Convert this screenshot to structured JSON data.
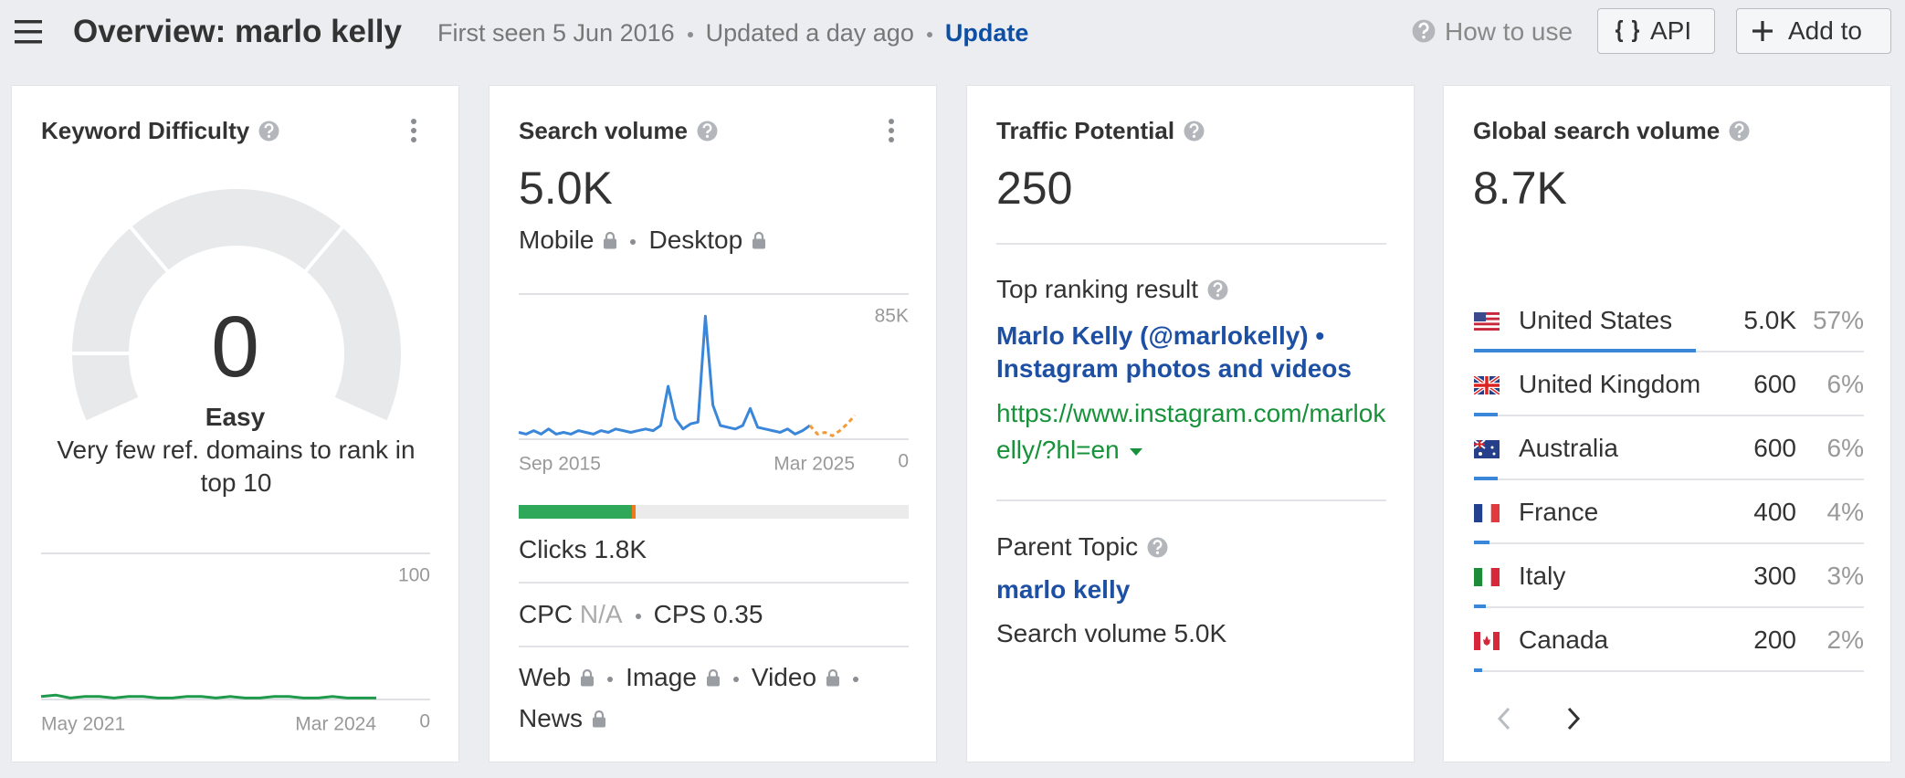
{
  "header": {
    "title": "Overview: marlo kelly",
    "first_seen": "First seen 5 Jun 2016",
    "updated": "Updated a day ago",
    "update_link": "Update",
    "how_to_use": "How to use",
    "api_button": "API",
    "add_button": "Add to"
  },
  "keyword_difficulty": {
    "title": "Keyword Difficulty",
    "value": 0,
    "rating": "Easy",
    "description": "Very few ref. domains to rank in top 10",
    "chart": {
      "type": "line",
      "color": "#1f9a4c",
      "ylim": [
        0,
        100
      ],
      "yticks": [
        0,
        100
      ],
      "x": [
        "May 2021",
        null,
        null,
        null,
        null,
        null,
        null,
        null,
        null,
        null,
        null,
        null,
        null,
        null,
        null,
        null,
        null,
        null,
        null,
        null,
        null,
        null,
        null,
        "Mar 2024"
      ],
      "values": [
        2,
        3,
        1,
        2,
        2,
        1,
        2,
        2,
        1,
        1,
        2,
        2,
        1,
        2,
        1,
        1,
        2,
        2,
        1,
        1,
        2,
        1,
        1,
        1
      ]
    }
  },
  "search_volume": {
    "title": "Search volume",
    "value": "5.0K",
    "mobile": "Mobile",
    "desktop": "Desktop",
    "chart": {
      "type": "line",
      "ylim": [
        0,
        85000
      ],
      "yticks": [
        0,
        {
          "value": 85000,
          "label": "85K"
        }
      ],
      "x": [
        "Sep 2015",
        null,
        null,
        null,
        null,
        null,
        null,
        null,
        null,
        null,
        null,
        null,
        null,
        null,
        null,
        null,
        null,
        null,
        null,
        null,
        null,
        null,
        null,
        null,
        null,
        null,
        null,
        null,
        null,
        null,
        null,
        null,
        null,
        null,
        null,
        null,
        null,
        null,
        null,
        null,
        null,
        null,
        null,
        null,
        null,
        "Mar 2025"
      ],
      "series": [
        {
          "color": "#3a86d8",
          "dash": false,
          "values": [
            4000,
            3000,
            5000,
            3000,
            6000,
            3000,
            4000,
            3000,
            5000,
            4000,
            3000,
            5000,
            4000,
            6000,
            5000,
            4000,
            5000,
            6000,
            5000,
            8000,
            31000,
            12000,
            6000,
            9000,
            10000,
            72000,
            20000,
            8000,
            7000,
            6000,
            8000,
            18000,
            7000,
            6000,
            5000,
            4000,
            6000,
            3000,
            5000,
            8000,
            null,
            null,
            null,
            null,
            null,
            null
          ]
        },
        {
          "color": "#f29b38",
          "dash": true,
          "values": [
            null,
            null,
            null,
            null,
            null,
            null,
            null,
            null,
            null,
            null,
            null,
            null,
            null,
            null,
            null,
            null,
            null,
            null,
            null,
            null,
            null,
            null,
            null,
            null,
            null,
            null,
            null,
            null,
            null,
            null,
            null,
            null,
            null,
            null,
            null,
            null,
            null,
            null,
            null,
            8000,
            3000,
            4000,
            2000,
            5000,
            9000,
            14000
          ]
        }
      ]
    },
    "clicks_bar": {
      "organic": 29,
      "paid": 1,
      "organic_color": "#2fa85a",
      "paid_color": "#f07a1a"
    },
    "clicks": "Clicks 1.8K",
    "cpc_label": "CPC",
    "cpc_value": "N/A",
    "cps": "CPS 0.35",
    "serp_features": [
      "Web",
      "Image",
      "Video",
      "News"
    ]
  },
  "traffic_potential": {
    "title": "Traffic Potential",
    "value": 250,
    "top_result_label": "Top ranking result",
    "top_result_title": "Marlo Kelly (@marlokelly) • Instagram photos and videos",
    "top_result_url": "https://www.instagram.com/marlokelly/?hl=en",
    "parent_topic_label": "Parent Topic",
    "parent_topic": "marlo kelly",
    "parent_topic_volume": "Search volume 5.0K"
  },
  "global_search_volume": {
    "title": "Global search volume",
    "value": "8.7K",
    "bar_color": "#3a86d8",
    "countries": [
      {
        "name": "United States",
        "volume": "5.0K",
        "share": 57,
        "share_label": "57%"
      },
      {
        "name": "United Kingdom",
        "volume": 600,
        "share": 6,
        "share_label": "6%"
      },
      {
        "name": "Australia",
        "volume": 600,
        "share": 6,
        "share_label": "6%"
      },
      {
        "name": "France",
        "volume": 400,
        "share": 4,
        "share_label": "4%"
      },
      {
        "name": "Italy",
        "volume": 300,
        "share": 3,
        "share_label": "3%"
      },
      {
        "name": "Canada",
        "volume": 200,
        "share": 2,
        "share_label": "2%"
      }
    ]
  }
}
